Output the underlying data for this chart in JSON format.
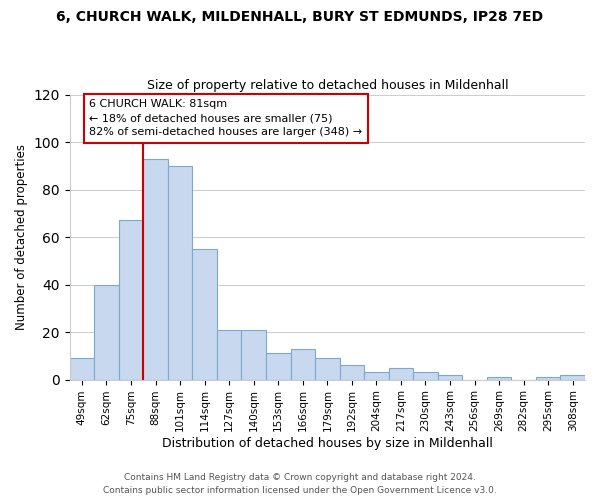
{
  "title_line1": "6, CHURCH WALK, MILDENHALL, BURY ST EDMUNDS, IP28 7ED",
  "title_line2": "Size of property relative to detached houses in Mildenhall",
  "xlabel": "Distribution of detached houses by size in Mildenhall",
  "ylabel": "Number of detached properties",
  "categories": [
    "49sqm",
    "62sqm",
    "75sqm",
    "88sqm",
    "101sqm",
    "114sqm",
    "127sqm",
    "140sqm",
    "153sqm",
    "166sqm",
    "179sqm",
    "192sqm",
    "204sqm",
    "217sqm",
    "230sqm",
    "243sqm",
    "256sqm",
    "269sqm",
    "282sqm",
    "295sqm",
    "308sqm"
  ],
  "values": [
    9,
    40,
    67,
    93,
    90,
    55,
    21,
    21,
    11,
    13,
    9,
    6,
    3,
    5,
    3,
    2,
    0,
    1,
    0,
    1,
    2
  ],
  "bar_color": "#c8d8ee",
  "bar_edge_color": "#7aaad0",
  "ylim": [
    0,
    120
  ],
  "yticks": [
    0,
    20,
    40,
    60,
    80,
    100,
    120
  ],
  "vline_color": "#cc0000",
  "annotation_title": "6 CHURCH WALK: 81sqm",
  "annotation_line1": "← 18% of detached houses are smaller (75)",
  "annotation_line2": "82% of semi-detached houses are larger (348) →",
  "annotation_box_color": "#ffffff",
  "annotation_box_edge": "#cc0000",
  "footer_line1": "Contains HM Land Registry data © Crown copyright and database right 2024.",
  "footer_line2": "Contains public sector information licensed under the Open Government Licence v3.0.",
  "background_color": "#ffffff",
  "grid_color": "#cccccc"
}
